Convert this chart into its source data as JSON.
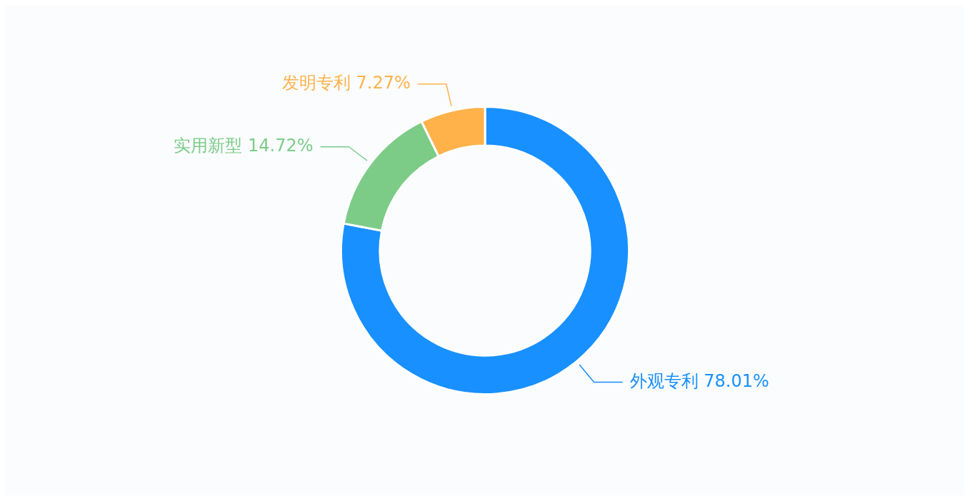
{
  "chart_data": {
    "type": "donut",
    "categories": [
      "外观专利",
      "实用新型",
      "发明专利"
    ],
    "values": [
      78.01,
      14.72,
      7.27
    ],
    "colors": [
      "#1890ff",
      "#7ccc88",
      "#ffb14a"
    ],
    "value_labels": [
      "78.01%",
      "14.72%",
      "7.27%"
    ],
    "legend": false
  }
}
